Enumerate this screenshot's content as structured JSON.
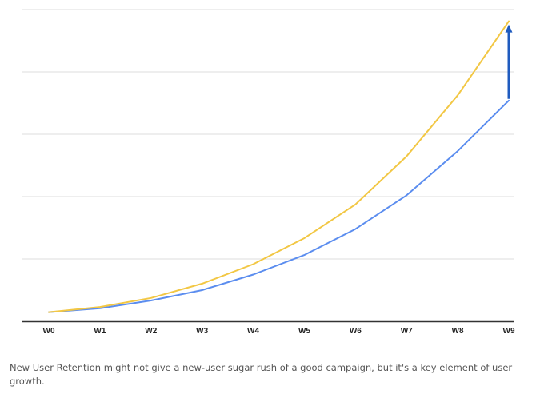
{
  "chart_data": {
    "type": "line",
    "categories": [
      "W0",
      "W1",
      "W2",
      "W3",
      "W4",
      "W5",
      "W6",
      "W7",
      "W8",
      "W9"
    ],
    "series": [
      {
        "values": [
          0.7,
          1.0,
          1.6,
          2.4,
          3.6,
          5.1,
          7.1,
          9.7,
          13.1,
          17.0
        ],
        "color": "#5b8def"
      },
      {
        "values": [
          0.7,
          1.1,
          1.8,
          2.9,
          4.4,
          6.4,
          9.0,
          12.7,
          17.4,
          23.1
        ],
        "color": "#f2c744"
      }
    ],
    "ylim": [
      0,
      24
    ],
    "grid": true,
    "y_tick_labels_shown": false,
    "annotation": {
      "type": "arrow",
      "category": "W9",
      "from_value": 17.0,
      "to_value": 23.1,
      "color": "#1f5bbf"
    }
  },
  "caption": "New User Retention might not give a new-user sugar rush of a good campaign, but it's a key element of user growth."
}
